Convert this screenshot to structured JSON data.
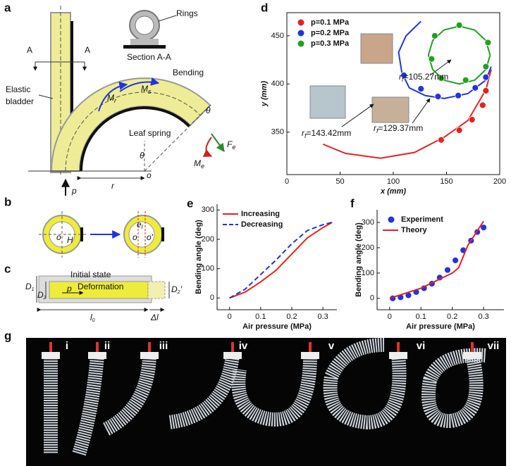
{
  "panel_labels": [
    "a",
    "b",
    "c",
    "d",
    "e",
    "f",
    "g"
  ],
  "diagram_a": {
    "rings": "Rings",
    "section": "Section A-A",
    "cut_left": "A",
    "cut_right": "A",
    "bladder": [
      "Elastic",
      "bladder"
    ],
    "bending": "Bending",
    "leaf_spring": "Leaf spring",
    "m_r": {
      "base": "M",
      "sub": "r"
    },
    "m_s": {
      "base": "M",
      "sub": "s"
    },
    "m_e": {
      "base": "M",
      "sub": "e"
    },
    "f_e": {
      "base": "F",
      "sub": "e"
    },
    "theta_end": "θ",
    "theta_center": "θ",
    "origin": "o",
    "radius": "r",
    "pressure": "p"
  },
  "diagram_b": {
    "o_left": "o",
    "h": "H",
    "e": {
      "base": "e",
      "sub": "l"
    },
    "o_right": "o",
    "o_prime": "o'"
  },
  "diagram_c": {
    "initial": "Initial state",
    "deformation": "Deformation",
    "d1": {
      "base": "D",
      "sub": "1"
    },
    "d2": {
      "base": "D",
      "sub": "2"
    },
    "p": "p",
    "d2p": {
      "base": "D",
      "sub": "2",
      "tail": "'"
    },
    "l0": {
      "base": "l",
      "sub": "0"
    },
    "dl": "Δl"
  },
  "chart_data": [
    {
      "type": "scatter",
      "xlabel": "x (mm)",
      "ylabel": "y (mm)",
      "xlim": [
        0,
        200
      ],
      "ylim": [
        306,
        474
      ],
      "xticks": [
        0,
        50,
        100,
        150,
        200
      ],
      "yticks": [
        350,
        400,
        450
      ],
      "legend": "upper left",
      "series": [
        {
          "name": "p=0.1 MPa",
          "color": "#e52222",
          "style": "points",
          "x": [
            145,
            162,
            174,
            184,
            187
          ],
          "values": [
            342,
            352,
            363,
            378,
            393
          ]
        },
        {
          "name": "p=0.2 MPa",
          "color": "#2233dd",
          "style": "points",
          "x": [
            110,
            126,
            142,
            161,
            177,
            187
          ],
          "values": [
            409,
            395,
            387,
            388,
            396,
            407
          ]
        },
        {
          "name": "p=0.3 MPa",
          "color": "#22a022",
          "style": "points",
          "x": [
            162,
            139,
            136,
            145,
            168,
            187,
            189
          ],
          "values": [
            461,
            450,
            426,
            406,
            404,
            418,
            443
          ]
        }
      ],
      "curves": [
        {
          "color": "#e52222",
          "style": "line",
          "x": [
            34,
            55,
            88,
            120,
            148,
            170,
            187,
            192
          ],
          "values": [
            337.5,
            328,
            323,
            329,
            345,
            362,
            394,
            415
          ]
        },
        {
          "color": "#2233dd",
          "style": "line",
          "x": [
            126,
            112,
            105,
            108,
            115,
            130,
            148,
            170,
            187,
            192
          ],
          "values": [
            465,
            450,
            433,
            412,
            396,
            388,
            385,
            390,
            404,
            418
          ]
        },
        {
          "color": "#22a022",
          "style": "line",
          "x": [
            191,
            187,
            176.5,
            162,
            147.5,
            137,
            133,
            137,
            147.5,
            162,
            176.5,
            187,
            191
          ],
          "values": [
            430,
            445,
            456,
            460,
            456,
            445,
            430,
            415,
            404,
            400,
            404,
            415,
            430
          ]
        }
      ],
      "annotations": [
        {
          "base": "r",
          "sub": "f",
          "text": "=105.27mm"
        },
        {
          "base": "r",
          "sub": "f",
          "text": "=143.42mm"
        },
        {
          "base": "r",
          "sub": "f",
          "text": "=129.37mm"
        }
      ]
    },
    {
      "type": "line",
      "xlabel": "Air pressure (MPa)",
      "ylabel": "Bending angle (deg)",
      "xlim": [
        -0.04,
        0.345
      ],
      "ylim": [
        -40,
        320
      ],
      "xticks": [
        0,
        0.1,
        0.2,
        0.3
      ],
      "yticks": [
        0,
        100,
        200,
        300
      ],
      "legend": "upper left",
      "series": [
        {
          "name": "Increasing",
          "color": "#e52222",
          "style": "line",
          "x": [
            0,
            0.05,
            0.1,
            0.15,
            0.2,
            0.25,
            0.3,
            0.33
          ],
          "values": [
            0,
            20,
            55,
            95,
            150,
            205,
            240,
            258
          ]
        },
        {
          "name": "Decreasing",
          "color": "#2233cc",
          "style": "dashed",
          "x": [
            0,
            0.05,
            0.1,
            0.15,
            0.2,
            0.25,
            0.3,
            0.33
          ],
          "values": [
            0,
            30,
            80,
            130,
            185,
            230,
            250,
            258
          ]
        }
      ]
    },
    {
      "type": "scatter",
      "xlabel": "Air pressure (MPa)",
      "ylabel": "Bending angle (deg)",
      "xlim": [
        -0.04,
        0.365
      ],
      "ylim": [
        -45,
        350
      ],
      "xticks": [
        0,
        0.1,
        0.2,
        0.3
      ],
      "yticks": [
        0,
        100,
        200,
        300
      ],
      "legend": "upper left",
      "series": [
        {
          "name": "Experiment",
          "color": "#2233dd",
          "style": "points",
          "x": [
            0.01,
            0.035,
            0.06,
            0.085,
            0.11,
            0.135,
            0.16,
            0.185,
            0.21,
            0.235,
            0.26,
            0.28,
            0.3
          ],
          "values": [
            0,
            4,
            12,
            25,
            40,
            58,
            82,
            112,
            150,
            190,
            228,
            262,
            280
          ]
        },
        {
          "name": "Theory",
          "color": "#e52222",
          "style": "line",
          "x": [
            0,
            0.1,
            0.2,
            0.22,
            0.25,
            0.3
          ],
          "values": [
            0,
            40,
            100,
            120,
            210,
            305
          ]
        }
      ]
    }
  ],
  "photos": {
    "labels": [
      "i",
      "ii",
      "iii",
      "iv",
      "v",
      "vi",
      "vii"
    ]
  }
}
